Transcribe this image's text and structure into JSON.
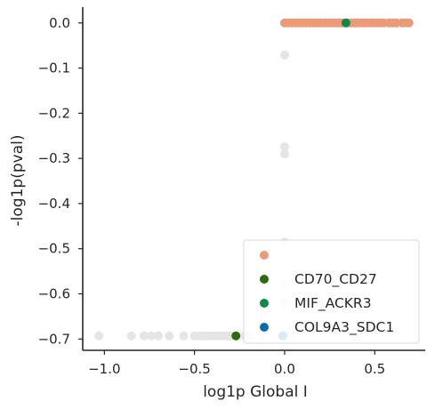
{
  "chart_data": {
    "type": "scatter",
    "xlabel": "log1p Global I",
    "ylabel": "-log1p(pval)",
    "xlim": [
      -1.12,
      0.78
    ],
    "ylim": [
      -0.725,
      0.035
    ],
    "x_ticks": [
      -1.0,
      -0.5,
      0.0,
      0.5
    ],
    "x_tick_labels": [
      "−1.0",
      "−0.5",
      "0.0",
      "0.5"
    ],
    "y_ticks": [
      0.0,
      -0.1,
      -0.2,
      -0.3,
      -0.4,
      -0.5,
      -0.6,
      -0.7
    ],
    "y_tick_labels": [
      "0.0",
      "−0.1",
      "−0.2",
      "−0.3",
      "−0.4",
      "−0.5",
      "−0.6",
      "−0.7"
    ],
    "grid": false,
    "legend_position": "bottom-right",
    "colors": {
      "background": "#e5e5e5",
      "significant": "#ec9a78",
      "CD70_CD27": "#2f6b0a",
      "MIF_ACKR3": "#0b8a4a",
      "COL9A3_SDC1": "#0a6cb0"
    },
    "series": [
      {
        "name": "",
        "color": "#ec9a78",
        "x": [
          0.0,
          0.02,
          0.04,
          0.06,
          0.08,
          0.1,
          0.12,
          0.14,
          0.16,
          0.18,
          0.2,
          0.22,
          0.24,
          0.26,
          0.28,
          0.3,
          0.32,
          0.35,
          0.37,
          0.39,
          0.41,
          0.43,
          0.45,
          0.47,
          0.49,
          0.51,
          0.53,
          0.55,
          0.58,
          0.6,
          0.62,
          0.65,
          0.67,
          0.69
        ],
        "y": [
          0.0,
          0.0,
          0.0,
          0.0,
          0.0,
          0.0,
          0.0,
          0.0,
          0.0,
          0.0,
          0.0,
          0.0,
          0.0,
          0.0,
          0.0,
          0.0,
          0.0,
          0.0,
          0.0,
          0.0,
          0.0,
          0.0,
          0.0,
          0.0,
          0.0,
          0.0,
          0.0,
          0.0,
          0.0,
          0.0,
          0.0,
          0.0,
          0.0,
          0.0
        ]
      },
      {
        "name": "CD70_CD27",
        "color": "#2f6b0a",
        "x": [
          -0.27
        ],
        "y": [
          -0.693
        ]
      },
      {
        "name": "MIF_ACKR3",
        "color": "#0b8a4a",
        "x": [
          0.34
        ],
        "y": [
          0.0
        ]
      },
      {
        "name": "COL9A3_SDC1",
        "color": "#0a6cb0",
        "x": [
          -0.01
        ],
        "y": [
          -0.693
        ]
      }
    ],
    "background_points": {
      "color": "#e5e5e5",
      "x": [
        -1.03,
        -0.85,
        -0.78,
        -0.74,
        -0.7,
        -0.64,
        -0.56,
        -0.5,
        -0.47,
        -0.45,
        -0.43,
        -0.41,
        -0.39,
        -0.37,
        -0.35,
        -0.33,
        -0.31,
        -0.3,
        -0.22,
        -0.19,
        0.0,
        0.0,
        0.0,
        0.0,
        0.0,
        0.0,
        0.0
      ],
      "y": [
        -0.693,
        -0.693,
        -0.693,
        -0.693,
        -0.693,
        -0.693,
        -0.693,
        -0.693,
        -0.693,
        -0.693,
        -0.693,
        -0.693,
        -0.693,
        -0.693,
        -0.693,
        -0.693,
        -0.693,
        -0.693,
        -0.693,
        -0.693,
        -0.071,
        -0.274,
        -0.29,
        -0.485,
        -0.58,
        -0.62,
        -0.693
      ]
    }
  }
}
